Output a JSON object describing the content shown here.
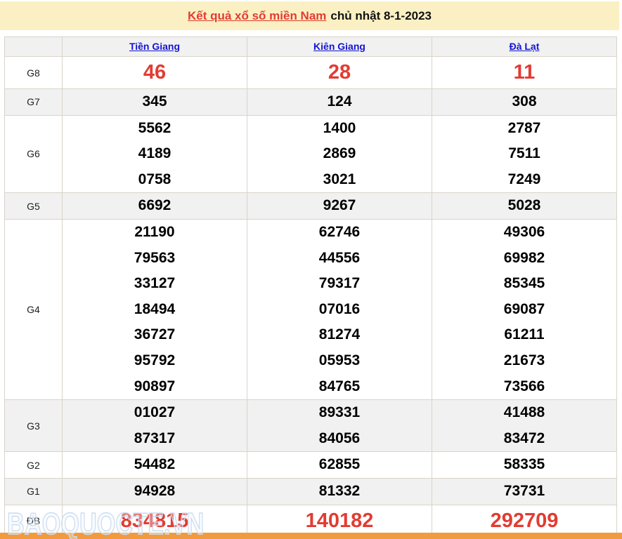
{
  "header": {
    "title_link": "Kết quả xổ số miền Nam",
    "title_rest": "chủ nhật 8-1-2023"
  },
  "columns": [
    "Tiền Giang",
    "Kiên Giang",
    "Đà Lạt"
  ],
  "rows": [
    {
      "label": "G8",
      "highlight": true,
      "values": [
        [
          "46"
        ],
        [
          "28"
        ],
        [
          "11"
        ]
      ]
    },
    {
      "label": "G7",
      "values": [
        [
          "345"
        ],
        [
          "124"
        ],
        [
          "308"
        ]
      ]
    },
    {
      "label": "G6",
      "values": [
        [
          "5562",
          "4189",
          "0758"
        ],
        [
          "1400",
          "2869",
          "3021"
        ],
        [
          "2787",
          "7511",
          "7249"
        ]
      ]
    },
    {
      "label": "G5",
      "values": [
        [
          "6692"
        ],
        [
          "9267"
        ],
        [
          "5028"
        ]
      ]
    },
    {
      "label": "G4",
      "values": [
        [
          "21190",
          "79563",
          "33127",
          "18494",
          "36727",
          "95792",
          "90897"
        ],
        [
          "62746",
          "44556",
          "79317",
          "07016",
          "81274",
          "05953",
          "84765"
        ],
        [
          "49306",
          "69982",
          "85345",
          "69087",
          "61211",
          "21673",
          "73566"
        ]
      ]
    },
    {
      "label": "G3",
      "values": [
        [
          "01027",
          "87317"
        ],
        [
          "89331",
          "84056"
        ],
        [
          "41488",
          "83472"
        ]
      ]
    },
    {
      "label": "G2",
      "values": [
        [
          "54482"
        ],
        [
          "62855"
        ],
        [
          "58335"
        ]
      ]
    },
    {
      "label": "G1",
      "values": [
        [
          "94928"
        ],
        [
          "81332"
        ],
        [
          "73731"
        ]
      ]
    },
    {
      "label": "ĐB",
      "highlight": true,
      "values": [
        [
          "834815"
        ],
        [
          "140182"
        ],
        [
          "292709"
        ]
      ]
    }
  ],
  "watermark": "BAOQUOCTE.VN",
  "colors": {
    "red": "#e23c32",
    "blue": "#1414d2",
    "yellow": "#faf0c3",
    "stripe": "#f1f1f1",
    "border": "#d8d4ca",
    "orange": "#f29a3e"
  }
}
